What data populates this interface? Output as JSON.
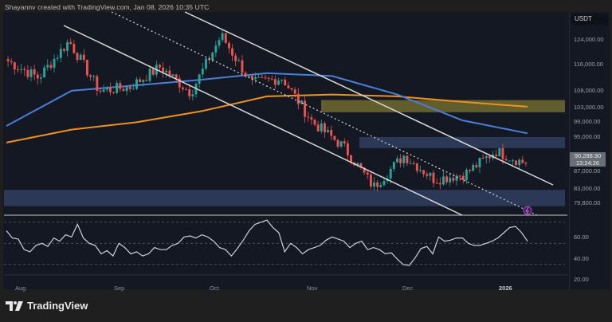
{
  "caption": "Shayannv created with TradingView.com, Jan 08, 2026 10:35 UTC",
  "brand": {
    "logo_text": "TradingView",
    "logo_icon": "tradingview-logo-icon"
  },
  "price_axis": {
    "unit": "USDT",
    "labels": [
      "124,000.00",
      "116,000.00",
      "108,000.00",
      "103,000.00",
      "99,000.00",
      "95,000.00",
      "87,000.00",
      "83,000.00",
      "79,800.00"
    ],
    "last_price": "90,288.90",
    "countdown": "13:24:26"
  },
  "rsi_axis": {
    "labels": [
      "60.00",
      "40.00",
      "20.00"
    ]
  },
  "time_axis": {
    "labels": [
      "Aug",
      "Sep",
      "Oct",
      "Nov",
      "Dec",
      "2026"
    ]
  },
  "colors": {
    "background": "#141823",
    "up_candle": "#26a69a",
    "down_candle": "#ef5350",
    "ma_fast": "#4a7fd8",
    "ma_slow": "#f0901e",
    "supply_zone": "#7a7a3a",
    "demand_zone": "#3a4a68",
    "channel_lines": "#d8d8d8",
    "rsi_line": "#c8d0dc"
  },
  "chart_data": [
    {
      "type": "candlestick",
      "title": "BTC/USDT Daily (Shayannv, TradingView)",
      "xlabel": "",
      "ylabel": "USDT",
      "x_ticks": [
        "Aug",
        "Sep",
        "Oct",
        "Nov",
        "Dec",
        "2026"
      ],
      "y_ticks": [
        124000,
        116000,
        108000,
        103000,
        99000,
        95000,
        87000,
        83000,
        79800
      ],
      "ylim": [
        77000,
        128000
      ],
      "last_price": 90288.9,
      "close_path": [
        {
          "date": "late Jul",
          "close": 118000
        },
        {
          "date": "early Aug",
          "close": 113500
        },
        {
          "date": "mid Aug",
          "close": 123500
        },
        {
          "date": "late Aug",
          "close": 110000
        },
        {
          "date": "early Sep",
          "close": 111000
        },
        {
          "date": "mid Sep",
          "close": 116500
        },
        {
          "date": "late Sep",
          "close": 109500
        },
        {
          "date": "early Oct",
          "close": 125000
        },
        {
          "date": "Oct 10",
          "close": 112000
        },
        {
          "date": "late Oct",
          "close": 113500
        },
        {
          "date": "early Nov",
          "close": 101500
        },
        {
          "date": "mid Nov",
          "close": 95000
        },
        {
          "date": "Nov 21",
          "close": 84000
        },
        {
          "date": "early Dec",
          "close": 92500
        },
        {
          "date": "mid Dec",
          "close": 86000
        },
        {
          "date": "late Dec",
          "close": 87500
        },
        {
          "date": "Jan 05",
          "close": 93700
        },
        {
          "date": "Jan 08",
          "close": 90288.9
        }
      ],
      "series": [
        {
          "name": "MA fast (blue)",
          "values": [
            100500,
            110000,
            111500,
            113000,
            114800,
            114000,
            109000,
            102000,
            98500
          ]
        },
        {
          "name": "MA slow (orange)",
          "values": [
            96000,
            99500,
            101500,
            104500,
            108500,
            109000,
            108500,
            107000,
            105700
          ]
        }
      ],
      "zones": [
        {
          "name": "supply zone",
          "from": 104200,
          "to": 107500,
          "color": "olive"
        },
        {
          "name": "resistance zone",
          "from": 94500,
          "to": 97500,
          "color": "blue"
        },
        {
          "name": "demand zone",
          "from": 78800,
          "to": 83200,
          "color": "blue"
        }
      ],
      "annotations": [
        "descending channel upper line",
        "descending channel lower line",
        "dotted channel midline",
        "alert marker near channel midline"
      ]
    },
    {
      "type": "line",
      "title": "RSI",
      "y_ticks": [
        60,
        40,
        20
      ],
      "levels": [
        70,
        50,
        30
      ],
      "ylim": [
        15,
        75
      ],
      "values": [
        62,
        55,
        54,
        44,
        42,
        48,
        50,
        47,
        55,
        52,
        58,
        56,
        68,
        55,
        50,
        48,
        40,
        43,
        38,
        50,
        46,
        40,
        42,
        38,
        40,
        46,
        44,
        44,
        48,
        50,
        56,
        57,
        55,
        58,
        56,
        52,
        46,
        44,
        38,
        45,
        53,
        62,
        68,
        70,
        72,
        65,
        60,
        42,
        50,
        46,
        40,
        44,
        46,
        48,
        53,
        56,
        54,
        52,
        46,
        50,
        52,
        44,
        46,
        44,
        40,
        41,
        35,
        30,
        29,
        36,
        45,
        47,
        40,
        56,
        52,
        53,
        55,
        55,
        50,
        48,
        48,
        50,
        52,
        55,
        60,
        65,
        66,
        60,
        52
      ]
    }
  ]
}
